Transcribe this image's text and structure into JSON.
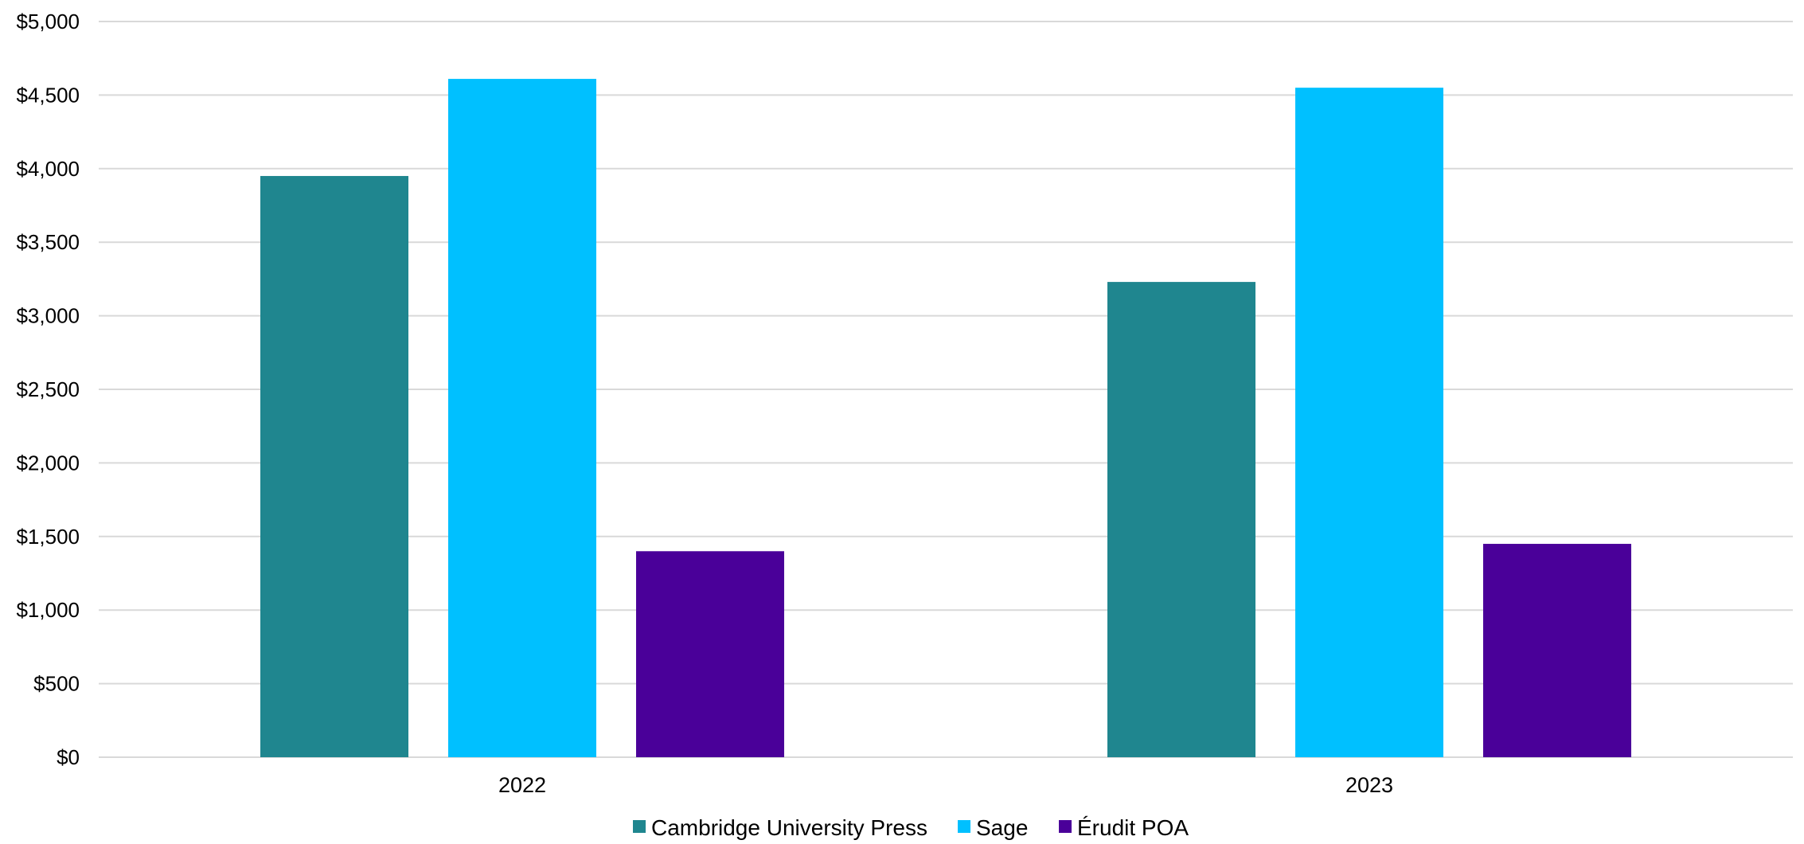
{
  "chart_data": {
    "type": "bar",
    "title": "",
    "xlabel": "",
    "ylabel": "",
    "categories": [
      "2022",
      "2023"
    ],
    "series": [
      {
        "name": "Cambridge University Press",
        "color": "#1f868f",
        "values": [
          3950,
          3230
        ]
      },
      {
        "name": "Sage",
        "color": "#00c0ff",
        "values": [
          4610,
          4550
        ]
      },
      {
        "name": "Érudit POA",
        "color": "#4a0099",
        "values": [
          1400,
          1450
        ]
      }
    ],
    "ylim": [
      0,
      5000
    ],
    "yticks": [
      0,
      500,
      1000,
      1500,
      2000,
      2500,
      3000,
      3500,
      4000,
      4500,
      5000
    ],
    "ytick_labels": [
      "$0",
      "$500",
      "$1,000",
      "$1,500",
      "$2,000",
      "$2,500",
      "$3,000",
      "$3,500",
      "$4,000",
      "$4,500",
      "$5,000"
    ],
    "grid": true,
    "legend_position": "bottom-center",
    "gridline_color": "#d9d9d9"
  }
}
